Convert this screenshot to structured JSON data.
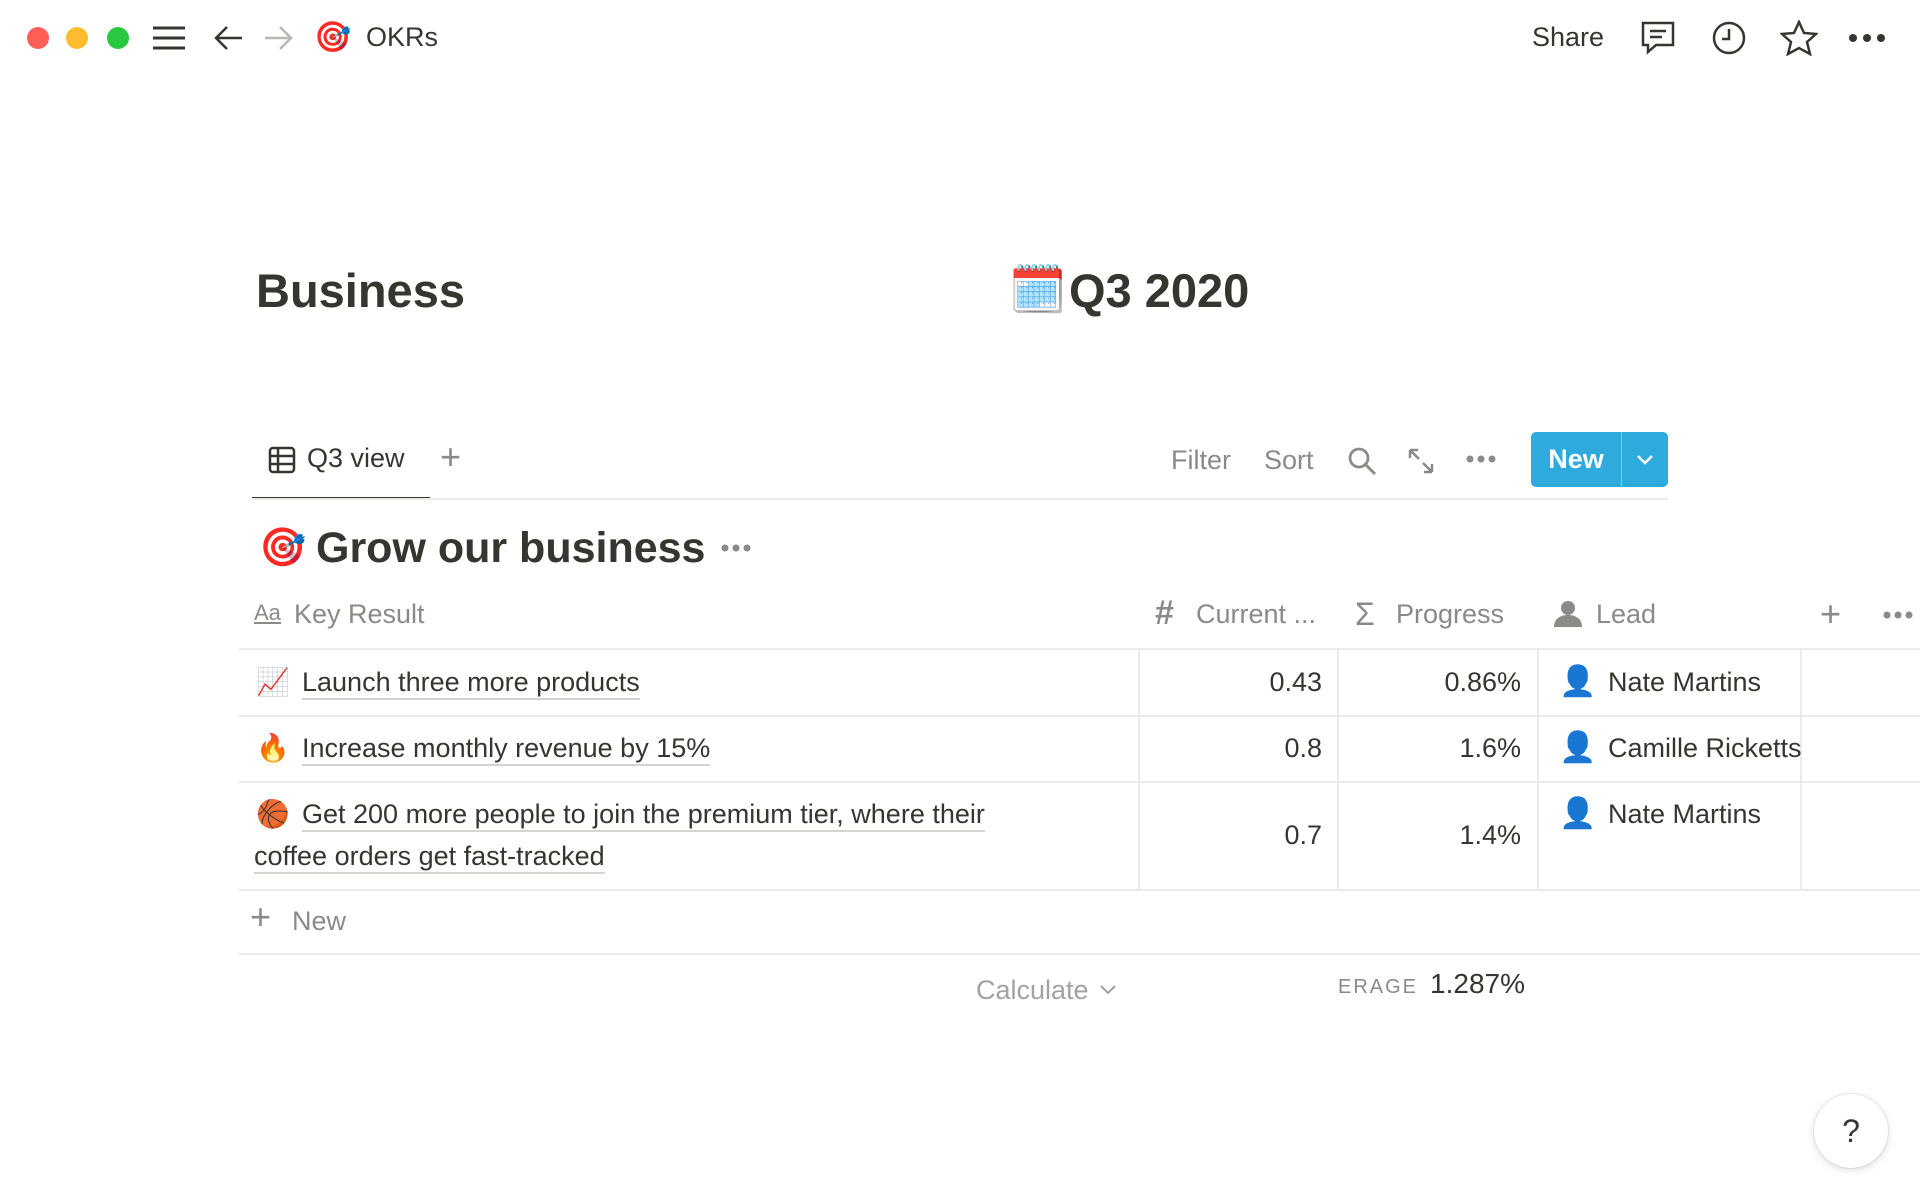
{
  "window": {
    "controls": {
      "close": "#ff5f57",
      "minimize": "#febc2e",
      "maximize": "#28c840"
    }
  },
  "topbar": {
    "page_icon": "🎯",
    "breadcrumb": "OKRs",
    "share_label": "Share",
    "icons": [
      "comment-icon",
      "history-icon",
      "star-icon",
      "more-icon"
    ]
  },
  "header": {
    "left_title": "Business",
    "right_icon": "🗓️",
    "right_title": "Q3 2020"
  },
  "views": {
    "tabs": [
      {
        "label": "Q3 view",
        "icon": "table-icon"
      }
    ],
    "filter_label": "Filter",
    "sort_label": "Sort",
    "new_label": "New",
    "accent": "#2eaadc"
  },
  "group": {
    "icon": "🎯",
    "title": "Grow our business"
  },
  "table": {
    "columns": [
      {
        "label": "Key Result",
        "icon": "Aa"
      },
      {
        "label": "Current ...",
        "icon": "#"
      },
      {
        "label": "Progress",
        "icon": "Σ"
      },
      {
        "label": "Lead",
        "icon": "person-icon"
      }
    ],
    "rows": [
      {
        "icon": "📈",
        "title": "Launch three more products",
        "current": "0.43",
        "progress": "0.86%",
        "lead": "Nate Martins"
      },
      {
        "icon": "🔥",
        "title": "Increase monthly revenue by 15%",
        "current": "0.8",
        "progress": "1.6%",
        "lead": "Camille Ricketts"
      },
      {
        "icon": "🏀",
        "title": "Get 200 more people to join the premium tier, where their",
        "title2": "coffee orders get fast-tracked",
        "current": "0.7",
        "progress": "1.4%",
        "lead": "Nate Martins"
      }
    ],
    "new_row_label": "New",
    "calculate_label": "Calculate",
    "aggregate_label": "ERAGE",
    "aggregate_value": "1.287%"
  },
  "help": {
    "label": "?"
  }
}
